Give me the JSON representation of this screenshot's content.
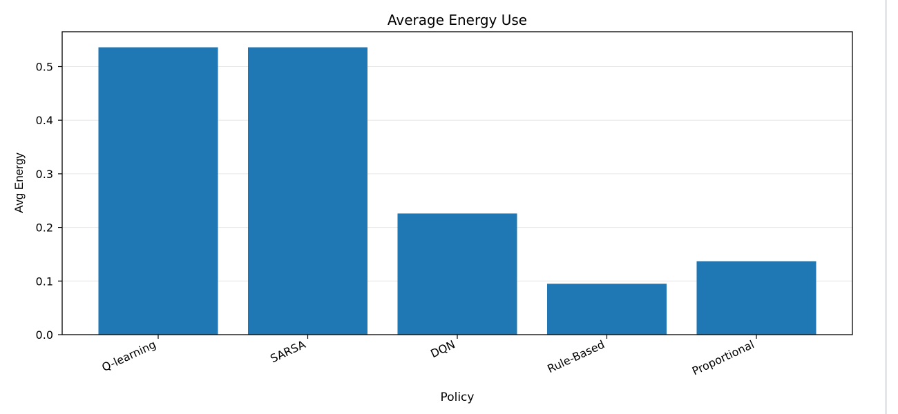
{
  "chart_data": {
    "type": "bar",
    "title": "Average Energy Use",
    "xlabel": "Policy",
    "ylabel": "Avg Energy",
    "categories": [
      "Q-learning",
      "SARSA",
      "DQN",
      "Rule-Based",
      "Proportional"
    ],
    "values": [
      0.536,
      0.536,
      0.226,
      0.095,
      0.137
    ],
    "ylim": [
      0.0,
      0.565
    ],
    "yticks": [
      "0.0",
      "0.1",
      "0.2",
      "0.3",
      "0.4",
      "0.5"
    ],
    "grid": "horizontal",
    "legend": "none",
    "bar_color": "#1f77b4",
    "grid_color": "#e6e6e6"
  }
}
